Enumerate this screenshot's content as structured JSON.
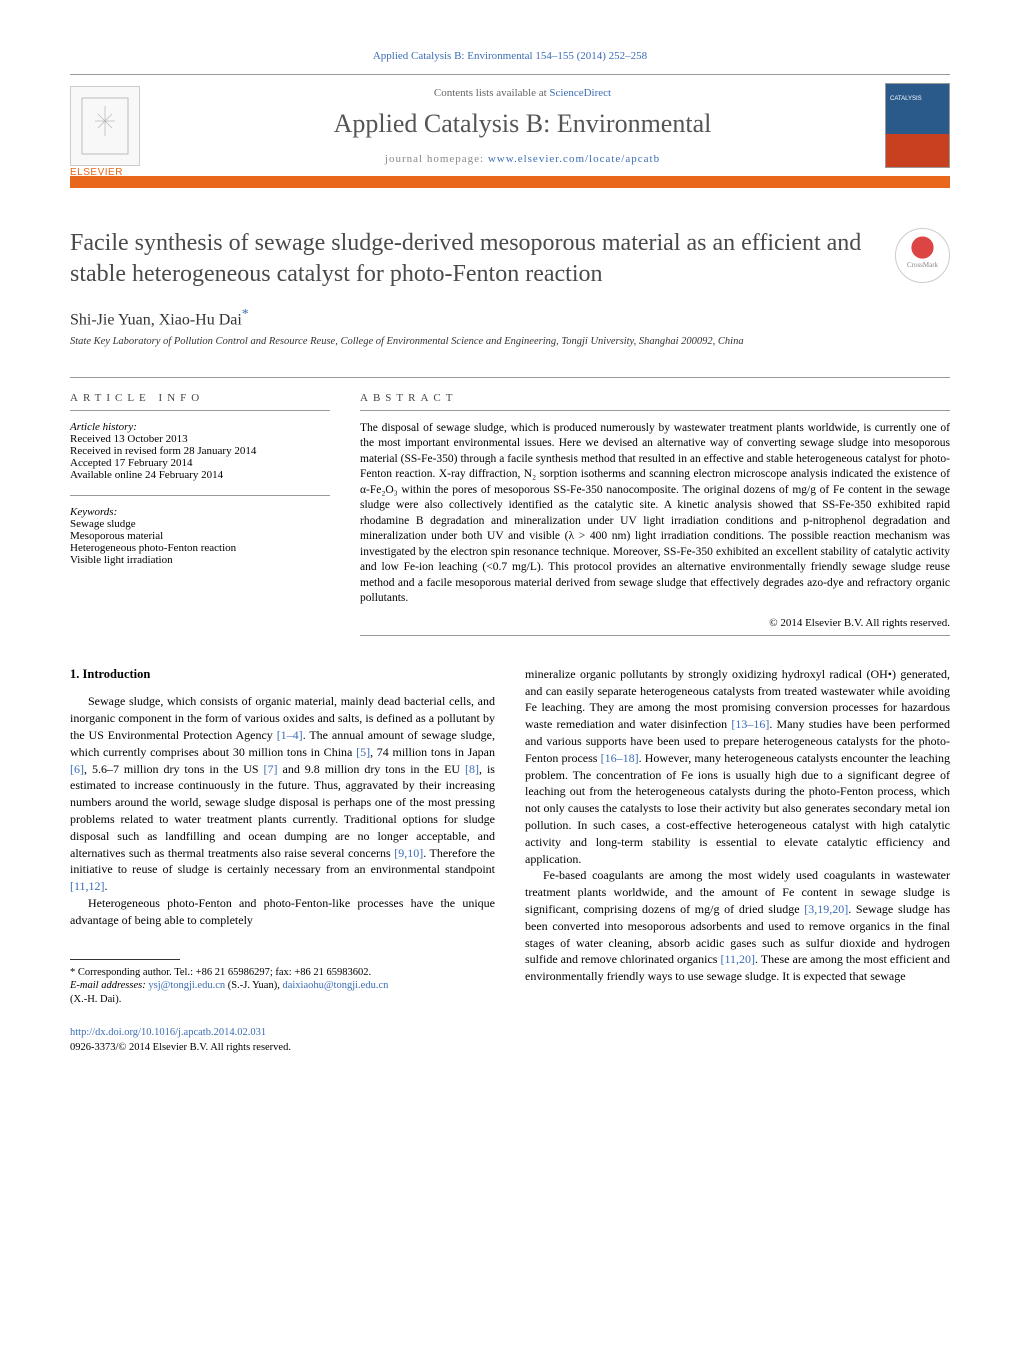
{
  "header": {
    "citation": "Applied Catalysis B: Environmental 154–155 (2014) 252–258",
    "contents_prefix": "Contents lists available at ",
    "contents_link": "ScienceDirect",
    "journal_name": "Applied Catalysis B: Environmental",
    "homepage_prefix": "journal homepage: ",
    "homepage_url": "www.elsevier.com/locate/apcatb",
    "publisher": "ELSEVIER"
  },
  "article": {
    "title": "Facile synthesis of sewage sludge-derived mesoporous material as an efficient and stable heterogeneous catalyst for photo-Fenton reaction",
    "authors_html": "Shi-Jie Yuan, Xiao-Hu Dai",
    "corr_mark": "*",
    "affiliation": "State Key Laboratory of Pollution Control and Resource Reuse, College of Environmental Science and Engineering, Tongji University, Shanghai 200092, China"
  },
  "article_info": {
    "heading": "ARTICLE INFO",
    "history_label": "Article history:",
    "history": [
      "Received 13 October 2013",
      "Received in revised form 28 January 2014",
      "Accepted 17 February 2014",
      "Available online 24 February 2014"
    ],
    "keywords_label": "Keywords:",
    "keywords": [
      "Sewage sludge",
      "Mesoporous material",
      "Heterogeneous photo-Fenton reaction",
      "Visible light irradiation"
    ]
  },
  "abstract": {
    "heading": "ABSTRACT",
    "text": "The disposal of sewage sludge, which is produced numerously by wastewater treatment plants worldwide, is currently one of the most important environmental issues. Here we devised an alternative way of converting sewage sludge into mesoporous material (SS-Fe-350) through a facile synthesis method that resulted in an effective and stable heterogeneous catalyst for photo-Fenton reaction. X-ray diffraction, N₂ sorption isotherms and scanning electron microscope analysis indicated the existence of α-Fe₂O₃ within the pores of mesoporous SS-Fe-350 nanocomposite. The original dozens of mg/g of Fe content in the sewage sludge were also collectively identified as the catalytic site. A kinetic analysis showed that SS-Fe-350 exhibited rapid rhodamine B degradation and mineralization under UV light irradiation conditions and p-nitrophenol degradation and mineralization under both UV and visible (λ > 400 nm) light irradiation conditions. The possible reaction mechanism was investigated by the electron spin resonance technique. Moreover, SS-Fe-350 exhibited an excellent stability of catalytic activity and low Fe-ion leaching (<0.7 mg/L). This protocol provides an alternative environmentally friendly sewage sludge reuse method and a facile mesoporous material derived from sewage sludge that effectively degrades azo-dye and refractory organic pollutants.",
    "copyright": "© 2014 Elsevier B.V. All rights reserved."
  },
  "body": {
    "section1_heading": "1. Introduction",
    "col1_p1": "Sewage sludge, which consists of organic material, mainly dead bacterial cells, and inorganic component in the form of various oxides and salts, is defined as a pollutant by the US Environmental Protection Agency [1–4]. The annual amount of sewage sludge, which currently comprises about 30 million tons in China [5], 74 million tons in Japan [6], 5.6–7 million dry tons in the US [7] and 9.8 million dry tons in the EU [8], is estimated to increase continuously in the future. Thus, aggravated by their increasing numbers around the world, sewage sludge disposal is perhaps one of the most pressing problems related to water treatment plants currently. Traditional options for sludge disposal such as landfilling and ocean dumping are no longer acceptable, and alternatives such as thermal treatments also raise several concerns [9,10]. Therefore the initiative to reuse of sludge is certainly necessary from an environmental standpoint [11,12].",
    "col1_p2": "Heterogeneous photo-Fenton and photo-Fenton-like processes have the unique advantage of being able to completely",
    "col2_p1": "mineralize organic pollutants by strongly oxidizing hydroxyl radical (OH•) generated, and can easily separate heterogeneous catalysts from treated wastewater while avoiding Fe leaching. They are among the most promising conversion processes for hazardous waste remediation and water disinfection [13–16]. Many studies have been performed and various supports have been used to prepare heterogeneous catalysts for the photo-Fenton process [16–18]. However, many heterogeneous catalysts encounter the leaching problem. The concentration of Fe ions is usually high due to a significant degree of leaching out from the heterogeneous catalysts during the photo-Fenton process, which not only causes the catalysts to lose their activity but also generates secondary metal ion pollution. In such cases, a cost-effective heterogeneous catalyst with high catalytic activity and long-term stability is essential to elevate catalytic efficiency and application.",
    "col2_p2": "Fe-based coagulants are among the most widely used coagulants in wastewater treatment plants worldwide, and the amount of Fe content in sewage sludge is significant, comprising dozens of mg/g of dried sludge [3,19,20]. Sewage sludge has been converted into mesoporous adsorbents and used to remove organics in the final stages of water cleaning, absorb acidic gases such as sulfur dioxide and hydrogen sulfide and remove chlorinated organics [11,20]. These are among the most efficient and environmentally friendly ways to use sewage sludge. It is expected that sewage"
  },
  "footnotes": {
    "corr": "* Corresponding author. Tel.: +86 21 65986297; fax: +86 21 65983602.",
    "email_label": "E-mail addresses: ",
    "email1": "ysj@tongji.edu.cn",
    "email1_who": " (S.-J. Yuan), ",
    "email2": "daixiaohu@tongji.edu.cn",
    "email2_who": "(X.-H. Dai)."
  },
  "doi": {
    "url": "http://dx.doi.org/10.1016/j.apcatb.2014.02.031",
    "issn_line": "0926-3373/© 2014 Elsevier B.V. All rights reserved."
  },
  "colors": {
    "link": "#3b6db5",
    "accent": "#e8671a",
    "text": "#000000"
  }
}
